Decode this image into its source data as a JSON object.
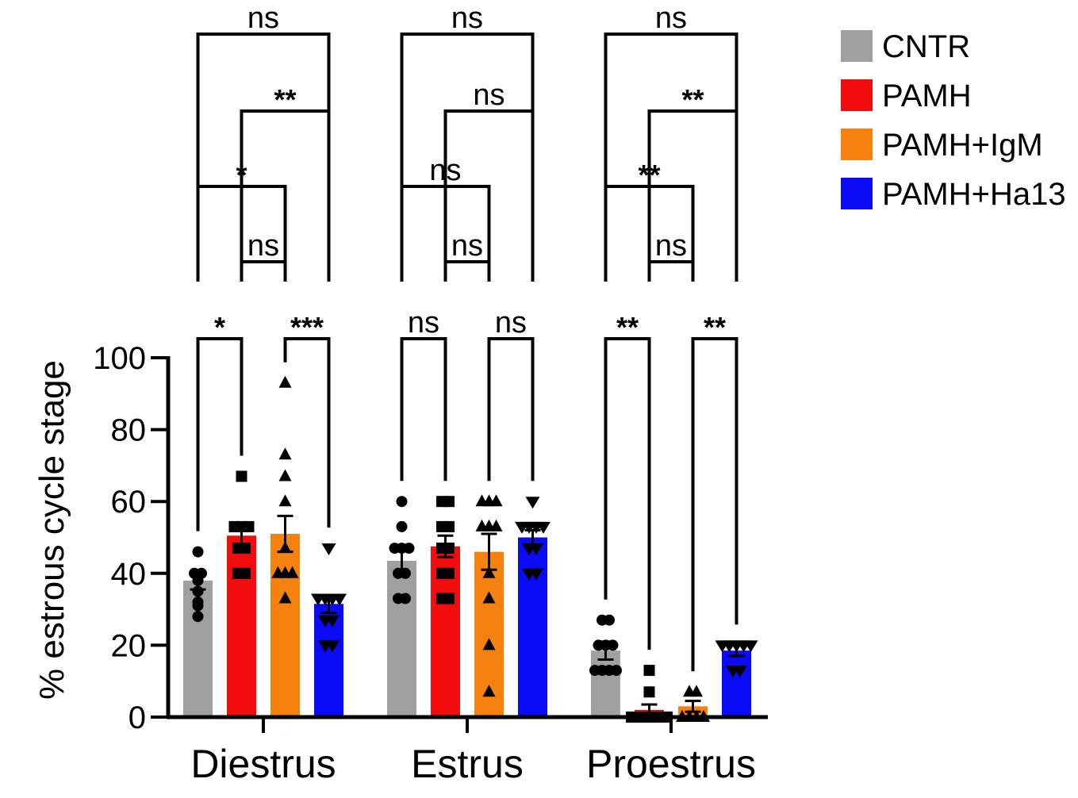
{
  "chart_data": {
    "type": "bar",
    "ylabel": "% estrous cycle stage",
    "ylim": [
      0,
      100
    ],
    "yticks": [
      0,
      20,
      40,
      60,
      80,
      100
    ],
    "categories": [
      "Diestrus",
      "Estrus",
      "Proestrus"
    ],
    "series": [
      {
        "name": "CNTR",
        "color": "#a0a0a2",
        "marker": "circle",
        "values": [
          38,
          43.5,
          18.5
        ],
        "sem": [
          2.5,
          3.5,
          2.5
        ],
        "points": [
          [
            46,
            40,
            40,
            39,
            38,
            35,
            32,
            31,
            28
          ],
          [
            60,
            53,
            47,
            47,
            47,
            40,
            40,
            33,
            33
          ],
          [
            27,
            27,
            20,
            20,
            20,
            13,
            13,
            13,
            13
          ]
        ]
      },
      {
        "name": "PAMH",
        "color": "#f20c0c",
        "marker": "square",
        "values": [
          50.5,
          47.5,
          2
        ],
        "sem": [
          3,
          3,
          1.5
        ],
        "points": [
          [
            67,
            53,
            53,
            53,
            47,
            47,
            40,
            40
          ],
          [
            60,
            60,
            53,
            53,
            47,
            47,
            40,
            40,
            33,
            33
          ],
          [
            13,
            7,
            0,
            0,
            0,
            0,
            0,
            0
          ]
        ]
      },
      {
        "name": "PAMH+IgM",
        "color": "#f5820e",
        "marker": "triangle-up",
        "values": [
          51,
          46,
          3
        ],
        "sem": [
          5,
          5,
          1.5
        ],
        "points": [
          [
            93,
            73,
            67,
            60,
            47,
            40,
            40,
            40,
            33
          ],
          [
            60,
            60,
            60,
            53,
            53,
            53,
            40,
            33,
            20,
            7
          ],
          [
            7,
            7,
            0,
            0,
            0,
            0
          ]
        ]
      },
      {
        "name": "PAMH+Ha13",
        "color": "#0a0af5",
        "marker": "triangle-down",
        "values": [
          31.5,
          50,
          18.5
        ],
        "sem": [
          2.5,
          2,
          1.5
        ],
        "points": [
          [
            47,
            33,
            33,
            33,
            33,
            27,
            27,
            20,
            20
          ],
          [
            60,
            53,
            53,
            53,
            53,
            47,
            47,
            40,
            40
          ],
          [
            20,
            20,
            20,
            20,
            20,
            13,
            13
          ]
        ]
      }
    ],
    "comparisons": [
      {
        "category": 0,
        "a": 0,
        "b": 1,
        "label": "*",
        "level": 0
      },
      {
        "category": 0,
        "a": 2,
        "b": 3,
        "label": "***",
        "level": 0
      },
      {
        "category": 0,
        "a": 1,
        "b": 2,
        "label": "ns",
        "level": 1
      },
      {
        "category": 0,
        "a": 0,
        "b": 2,
        "label": "*",
        "level": 2
      },
      {
        "category": 0,
        "a": 1,
        "b": 3,
        "label": "**",
        "level": 3
      },
      {
        "category": 0,
        "a": 0,
        "b": 3,
        "label": "ns",
        "level": 4
      },
      {
        "category": 1,
        "a": 0,
        "b": 1,
        "label": "ns",
        "level": 0
      },
      {
        "category": 1,
        "a": 2,
        "b": 3,
        "label": "ns",
        "level": 0
      },
      {
        "category": 1,
        "a": 1,
        "b": 2,
        "label": "ns",
        "level": 1
      },
      {
        "category": 1,
        "a": 0,
        "b": 2,
        "label": "ns",
        "level": 2
      },
      {
        "category": 1,
        "a": 1,
        "b": 3,
        "label": "ns",
        "level": 3
      },
      {
        "category": 1,
        "a": 0,
        "b": 3,
        "label": "ns",
        "level": 4
      },
      {
        "category": 2,
        "a": 0,
        "b": 1,
        "label": "**",
        "level": 0
      },
      {
        "category": 2,
        "a": 2,
        "b": 3,
        "label": "**",
        "level": 0
      },
      {
        "category": 2,
        "a": 1,
        "b": 2,
        "label": "ns",
        "level": 1
      },
      {
        "category": 2,
        "a": 0,
        "b": 2,
        "label": "**",
        "level": 2
      },
      {
        "category": 2,
        "a": 1,
        "b": 3,
        "label": "**",
        "level": 3
      },
      {
        "category": 2,
        "a": 0,
        "b": 3,
        "label": "ns",
        "level": 4
      }
    ],
    "legend_position": "top-right",
    "grid": false
  }
}
